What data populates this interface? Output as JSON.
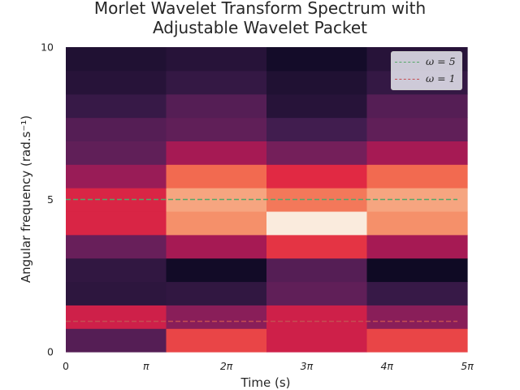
{
  "chart_data": {
    "type": "heatmap",
    "title_lines": [
      "Morlet Wavelet Transform Spectrum with",
      "Adjustable Wavelet Packet"
    ],
    "xlabel": "Time (s)",
    "ylabel": "Angular frequency (rad.s⁻¹)",
    "xlim": [
      0,
      5
    ],
    "ylim": [
      0,
      10
    ],
    "x_ticks": [
      {
        "value": 0,
        "label": "0"
      },
      {
        "value": 1,
        "label": "π"
      },
      {
        "value": 2,
        "label": "2π"
      },
      {
        "value": 3,
        "label": "3π"
      },
      {
        "value": 4,
        "label": "4π"
      },
      {
        "value": 5,
        "label": "5π"
      }
    ],
    "y_ticks": [
      {
        "value": 0,
        "label": "0"
      },
      {
        "value": 5,
        "label": "5"
      },
      {
        "value": 10,
        "label": "10"
      }
    ],
    "x_bin_edges": [
      0,
      1.25,
      2.5,
      3.75,
      5
    ],
    "y_bin_edges": [
      0,
      0.769,
      1.538,
      2.308,
      3.077,
      3.846,
      4.615,
      5.385,
      6.154,
      6.923,
      7.692,
      8.462,
      9.231,
      10
    ],
    "colormap": "rocket",
    "magnitude_rows_bottom_to_top": [
      [
        0.25,
        0.65,
        0.55,
        0.65
      ],
      [
        0.55,
        0.38,
        0.55,
        0.38
      ],
      [
        0.14,
        0.15,
        0.28,
        0.17
      ],
      [
        0.15,
        0.05,
        0.25,
        0.04
      ],
      [
        0.3,
        0.45,
        0.62,
        0.45
      ],
      [
        0.58,
        0.8,
        1.0,
        0.8
      ],
      [
        0.58,
        0.85,
        0.75,
        0.85
      ],
      [
        0.42,
        0.72,
        0.6,
        0.72
      ],
      [
        0.28,
        0.45,
        0.33,
        0.45
      ],
      [
        0.25,
        0.28,
        0.2,
        0.28
      ],
      [
        0.17,
        0.25,
        0.12,
        0.25
      ],
      [
        0.12,
        0.16,
        0.1,
        0.16
      ],
      [
        0.1,
        0.12,
        0.06,
        0.12
      ]
    ],
    "reference_lines": [
      {
        "name": "ω = 5",
        "y": 5,
        "color": "#55a868"
      },
      {
        "name": "ω = 1",
        "y": 1,
        "color": "#c44e52"
      }
    ],
    "legend_position": "top-right",
    "grid": false
  }
}
